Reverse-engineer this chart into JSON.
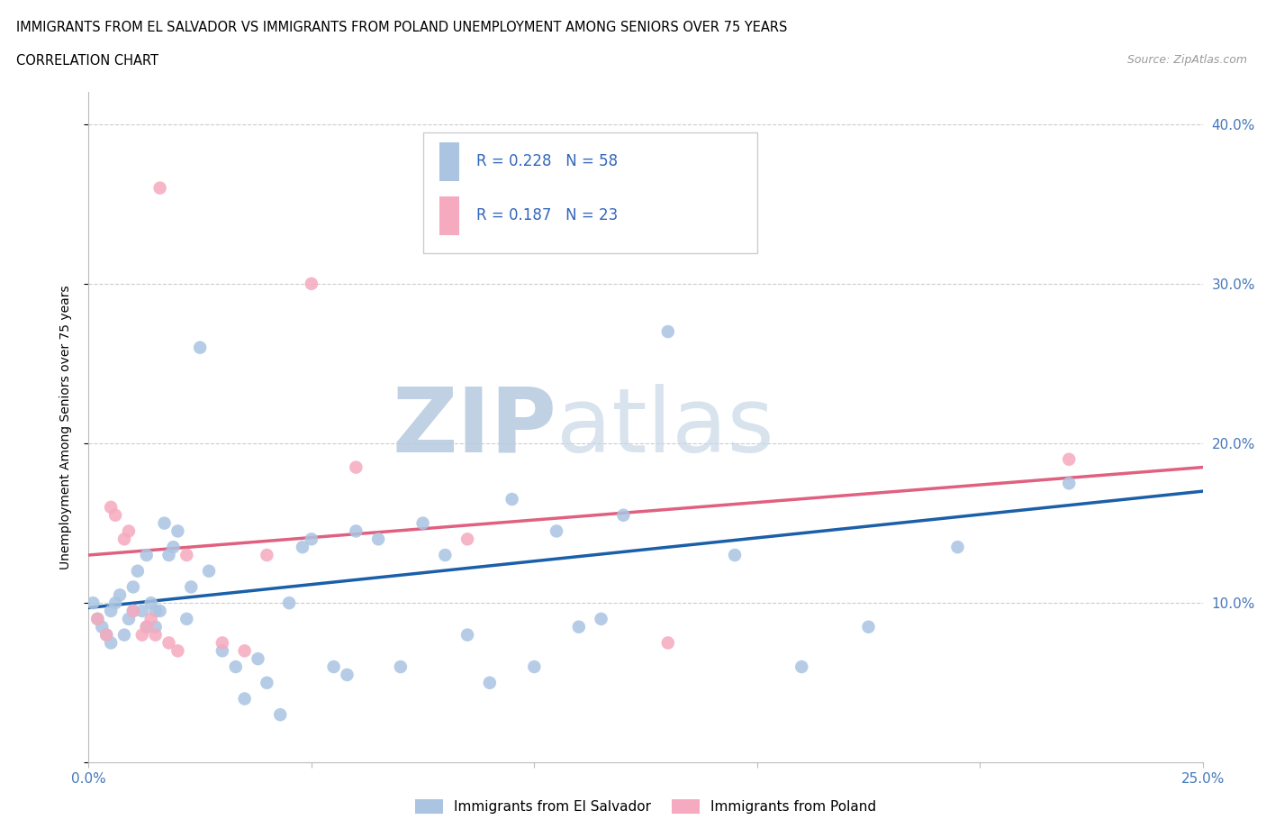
{
  "title_line1": "IMMIGRANTS FROM EL SALVADOR VS IMMIGRANTS FROM POLAND UNEMPLOYMENT AMONG SENIORS OVER 75 YEARS",
  "title_line2": "CORRELATION CHART",
  "source": "Source: ZipAtlas.com",
  "ylabel": "Unemployment Among Seniors over 75 years",
  "xlim": [
    0,
    0.25
  ],
  "ylim": [
    0,
    0.42
  ],
  "el_salvador_R": 0.228,
  "el_salvador_N": 58,
  "poland_R": 0.187,
  "poland_N": 23,
  "el_salvador_color": "#aac4e2",
  "poland_color": "#f5aabf",
  "el_salvador_line_color": "#1a5fa8",
  "poland_line_color": "#e06080",
  "background_color": "#ffffff",
  "watermark_color": "#dce8f5",
  "grid_color": "#cccccc",
  "el_salvador_x": [
    0.001,
    0.002,
    0.003,
    0.004,
    0.005,
    0.005,
    0.006,
    0.007,
    0.008,
    0.009,
    0.01,
    0.01,
    0.011,
    0.012,
    0.013,
    0.013,
    0.014,
    0.015,
    0.015,
    0.016,
    0.017,
    0.018,
    0.019,
    0.02,
    0.022,
    0.023,
    0.025,
    0.027,
    0.03,
    0.033,
    0.035,
    0.038,
    0.04,
    0.043,
    0.045,
    0.048,
    0.05,
    0.055,
    0.058,
    0.06,
    0.065,
    0.07,
    0.075,
    0.08,
    0.085,
    0.09,
    0.095,
    0.1,
    0.105,
    0.11,
    0.115,
    0.12,
    0.13,
    0.145,
    0.16,
    0.175,
    0.195,
    0.22
  ],
  "el_salvador_y": [
    0.1,
    0.09,
    0.085,
    0.08,
    0.075,
    0.095,
    0.1,
    0.105,
    0.08,
    0.09,
    0.11,
    0.095,
    0.12,
    0.095,
    0.085,
    0.13,
    0.1,
    0.095,
    0.085,
    0.095,
    0.15,
    0.13,
    0.135,
    0.145,
    0.09,
    0.11,
    0.26,
    0.12,
    0.07,
    0.06,
    0.04,
    0.065,
    0.05,
    0.03,
    0.1,
    0.135,
    0.14,
    0.06,
    0.055,
    0.145,
    0.14,
    0.06,
    0.15,
    0.13,
    0.08,
    0.05,
    0.165,
    0.06,
    0.145,
    0.085,
    0.09,
    0.155,
    0.27,
    0.13,
    0.06,
    0.085,
    0.135,
    0.175
  ],
  "poland_x": [
    0.002,
    0.004,
    0.005,
    0.006,
    0.008,
    0.009,
    0.01,
    0.012,
    0.013,
    0.014,
    0.015,
    0.016,
    0.018,
    0.02,
    0.022,
    0.03,
    0.035,
    0.04,
    0.05,
    0.06,
    0.085,
    0.13,
    0.22
  ],
  "poland_y": [
    0.09,
    0.08,
    0.16,
    0.155,
    0.14,
    0.145,
    0.095,
    0.08,
    0.085,
    0.09,
    0.08,
    0.36,
    0.075,
    0.07,
    0.13,
    0.075,
    0.07,
    0.13,
    0.3,
    0.185,
    0.14,
    0.075,
    0.19
  ],
  "el_salvador_trend_y0": 0.097,
  "el_salvador_trend_y1": 0.17,
  "poland_trend_y0": 0.13,
  "poland_trend_y1": 0.185
}
